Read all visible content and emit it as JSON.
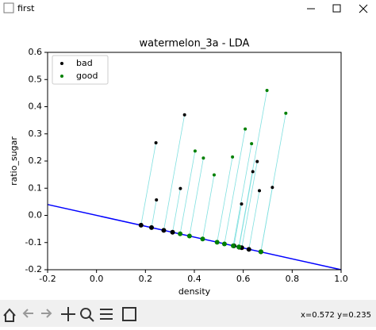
{
  "window": {
    "title": "first",
    "status": "x=0.572 y=0.235"
  },
  "chart_data": {
    "type": "scatter",
    "title": "watermelon_3a - LDA",
    "xlabel": "density",
    "ylabel": "ratio_sugar",
    "xlim": [
      -0.2,
      1.0
    ],
    "ylim": [
      -0.2,
      0.6
    ],
    "xticks": [
      -0.2,
      {
        "value": 0,
        "label": "0.0"
      },
      0.2,
      0.4,
      0.6,
      0.8,
      {
        "value": 1,
        "label": "1.0"
      }
    ],
    "yticks": [
      -0.2,
      -0.1,
      {
        "value": 0,
        "label": "0.0"
      },
      0.1,
      0.2,
      0.3,
      0.4,
      0.5,
      0.6
    ],
    "legend": "upper left",
    "line": {
      "x": [
        -0.2,
        1.0
      ],
      "y": [
        0.04,
        -0.2
      ],
      "color": "#0000ff"
    },
    "projection_color": "#7fe0e0",
    "series": [
      {
        "name": "bad",
        "color": "#000000",
        "x": [
          0.666,
          0.243,
          0.245,
          0.343,
          0.639,
          0.657,
          0.36,
          0.593,
          0.719
        ],
        "y": [
          0.091,
          0.267,
          0.057,
          0.099,
          0.161,
          0.198,
          0.37,
          0.042,
          0.103
        ],
        "proj_x": [
          0.623,
          0.182,
          0.225,
          0.311,
          0.583,
          0.594,
          0.275,
          0.562,
          0.672
        ],
        "proj_y": [
          -0.125,
          -0.036,
          -0.045,
          -0.062,
          -0.117,
          -0.119,
          -0.055,
          -0.112,
          -0.134
        ]
      },
      {
        "name": "good",
        "color": "#008000",
        "x": [
          0.697,
          0.774,
          0.634,
          0.608,
          0.556,
          0.403,
          0.481,
          0.437
        ],
        "y": [
          0.46,
          0.376,
          0.264,
          0.318,
          0.215,
          0.237,
          0.149,
          0.211
        ],
        "proj_x": [
          0.582,
          0.672,
          0.559,
          0.523,
          0.493,
          0.342,
          0.434,
          0.38
        ],
        "proj_y": [
          -0.116,
          -0.134,
          -0.112,
          -0.105,
          -0.099,
          -0.068,
          -0.087,
          -0.076
        ]
      }
    ]
  }
}
